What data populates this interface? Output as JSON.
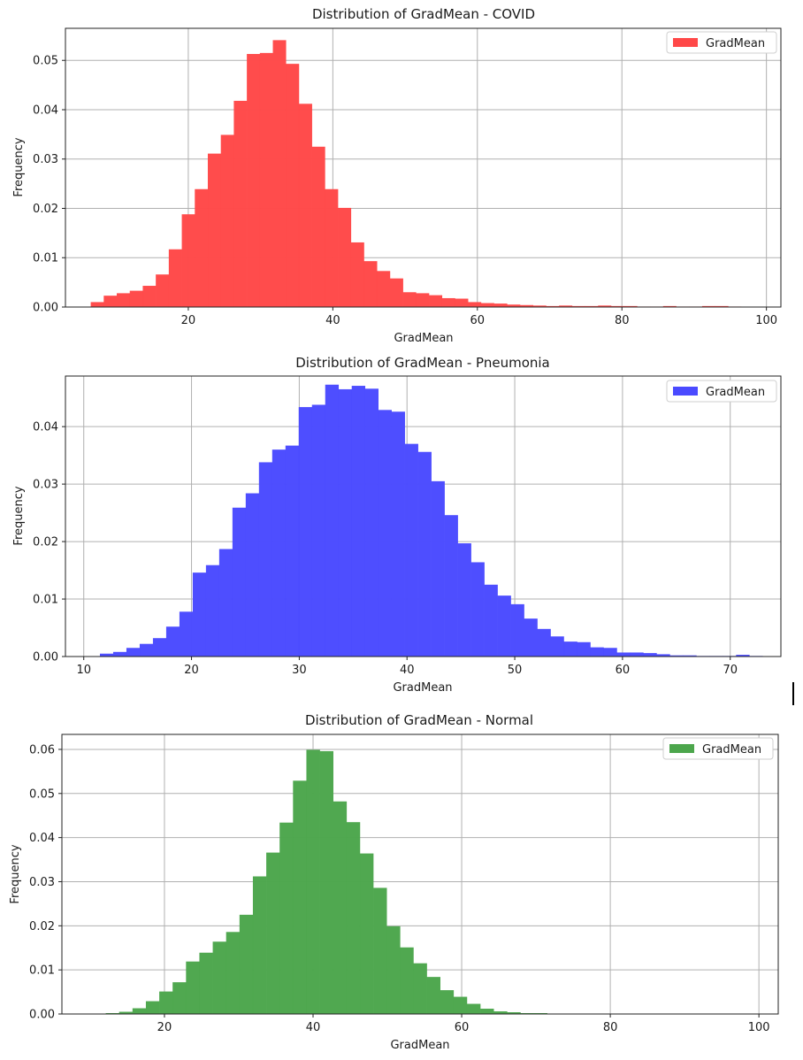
{
  "legend_label": "GradMean",
  "chart_data": [
    {
      "type": "bar",
      "title": "Distribution of GradMean - COVID",
      "xlabel": "GradMean",
      "ylabel": "Frequency",
      "color": "#ff4848",
      "legend": "top-right",
      "grid": true,
      "xlim": [
        3,
        102
      ],
      "ylim": [
        0,
        0.0565
      ],
      "xticks": [
        20,
        40,
        60,
        80,
        100
      ],
      "yticks": [
        0.0,
        0.01,
        0.02,
        0.03,
        0.04,
        0.05
      ],
      "bin_start": 6.5,
      "bin_width": 1.8,
      "values": [
        0.001,
        0.0023,
        0.0028,
        0.0033,
        0.0043,
        0.0066,
        0.0117,
        0.0188,
        0.0239,
        0.0311,
        0.0349,
        0.0418,
        0.0513,
        0.0515,
        0.0541,
        0.0493,
        0.0412,
        0.0325,
        0.0239,
        0.0201,
        0.0131,
        0.0093,
        0.0073,
        0.0058,
        0.003,
        0.0028,
        0.0024,
        0.0018,
        0.0017,
        0.001,
        0.0008,
        0.0007,
        0.0005,
        0.0004,
        0.0003,
        0.0002,
        0.0003,
        0.0002,
        0.0002,
        0.0003,
        0.0002,
        0.0002,
        0.0001,
        0.0001,
        0.0002,
        0.0001,
        0.0001,
        0.0002,
        0.0002,
        0.0001
      ]
    },
    {
      "type": "bar",
      "title": "Distribution of GradMean - Pneumonia",
      "xlabel": "GradMean",
      "ylabel": "Frequency",
      "color": "#4a4aff",
      "legend": "top-right",
      "grid": true,
      "xlim": [
        8.3,
        74.7
      ],
      "ylim": [
        0,
        0.0488
      ],
      "xticks": [
        10,
        20,
        30,
        40,
        50,
        60,
        70
      ],
      "yticks": [
        0.0,
        0.01,
        0.02,
        0.03,
        0.04
      ],
      "bin_start": 11.5,
      "bin_width": 1.23,
      "values": [
        0.0005,
        0.0008,
        0.0015,
        0.0022,
        0.0032,
        0.0052,
        0.0078,
        0.0146,
        0.0159,
        0.0187,
        0.0259,
        0.0284,
        0.0338,
        0.036,
        0.0367,
        0.0434,
        0.0438,
        0.0473,
        0.0465,
        0.0471,
        0.0466,
        0.0429,
        0.0426,
        0.037,
        0.0356,
        0.0305,
        0.0246,
        0.0197,
        0.0164,
        0.0125,
        0.0106,
        0.0091,
        0.0066,
        0.0048,
        0.0035,
        0.0026,
        0.0025,
        0.0016,
        0.0015,
        0.0007,
        0.0007,
        0.0006,
        0.0004,
        0.0002,
        0.0002,
        0.0001,
        0.0001,
        0.0001,
        0.0003,
        0.0001
      ]
    },
    {
      "type": "bar",
      "title": "Distribution of GradMean - Normal",
      "xlabel": "GradMean",
      "ylabel": "Frequency",
      "color": "#4ca64c",
      "legend": "top-right",
      "grid": true,
      "xlim": [
        6.2,
        102.6
      ],
      "ylim": [
        0,
        0.0634
      ],
      "xticks": [
        20,
        40,
        60,
        80,
        100
      ],
      "yticks": [
        0.0,
        0.01,
        0.02,
        0.03,
        0.04,
        0.05,
        0.06
      ],
      "bin_start": 10.3,
      "bin_width": 1.8,
      "values": [
        0.0001,
        0.0002,
        0.0005,
        0.0013,
        0.0029,
        0.0051,
        0.0072,
        0.0119,
        0.0139,
        0.0164,
        0.0186,
        0.0225,
        0.0312,
        0.0366,
        0.0434,
        0.0529,
        0.0599,
        0.0596,
        0.0482,
        0.0435,
        0.0364,
        0.0286,
        0.0199,
        0.0151,
        0.0115,
        0.0084,
        0.0054,
        0.0039,
        0.0023,
        0.0012,
        0.0006,
        0.0004,
        0.0002,
        0.0002,
        0.0001,
        0.0001,
        0.0001,
        0.0001,
        0.0,
        0.0,
        0.0,
        0.0,
        0.0,
        0.0,
        0.0,
        0.0,
        0.0,
        0.0,
        0.0,
        0.0
      ]
    }
  ]
}
